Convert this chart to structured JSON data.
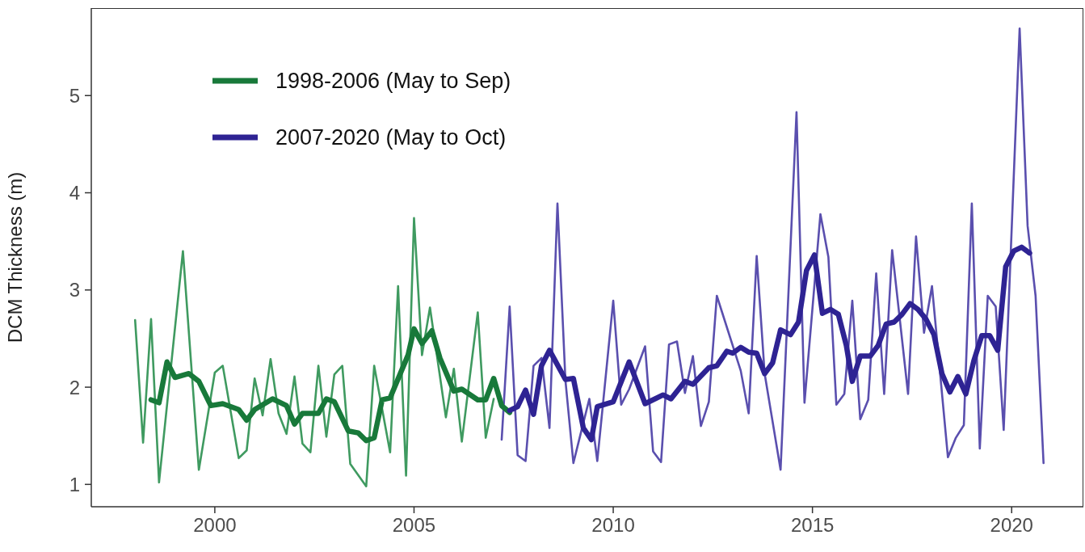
{
  "chart_data": {
    "type": "line",
    "ylabel": "DCM Thickness (m)",
    "xlim": [
      1996.9,
      2021.8
    ],
    "ylim": [
      0.77,
      5.9
    ],
    "xticks": [
      2000,
      2005,
      2010,
      2015,
      2020
    ],
    "yticks": [
      1,
      2,
      3,
      4,
      5
    ],
    "legend": "top left",
    "marker": "none",
    "line_style": "solid",
    "series": [
      {
        "color": "#3f9a60",
        "x": [
          1998.0,
          1998.2,
          1998.4,
          1998.6,
          1999.2,
          1999.6,
          2000.0,
          2000.2,
          2000.6,
          2000.8,
          2001.0,
          2001.2,
          2001.4,
          2001.6,
          2001.8,
          2002.0,
          2002.2,
          2002.4,
          2002.6,
          2002.8,
          2003.0,
          2003.2,
          2003.4,
          2003.8,
          2004.0,
          2004.4,
          2004.6,
          2004.8,
          2005.0,
          2005.2,
          2005.4,
          2005.8,
          2006.0,
          2006.2,
          2006.6,
          2006.8,
          2007.0
        ],
        "values": [
          2.69,
          1.43,
          2.7,
          1.02,
          3.4,
          1.15,
          2.15,
          2.22,
          1.27,
          1.35,
          2.09,
          1.71,
          2.29,
          1.73,
          1.52,
          2.11,
          1.42,
          1.33,
          2.22,
          1.49,
          2.13,
          2.22,
          1.21,
          0.98,
          2.22,
          1.33,
          3.04,
          1.09,
          3.74,
          2.33,
          2.82,
          1.69,
          2.19,
          1.44,
          2.77,
          1.48,
          1.88
        ]
      },
      {
        "color": "#5a4fae",
        "x": [
          2007.2,
          2007.4,
          2007.6,
          2007.8,
          2008.0,
          2008.2,
          2008.4,
          2008.6,
          2008.8,
          2009.0,
          2009.2,
          2009.4,
          2009.6,
          2010.0,
          2010.2,
          2010.4,
          2010.8,
          2011.0,
          2011.2,
          2011.4,
          2011.6,
          2011.8,
          2012.0,
          2012.2,
          2012.4,
          2012.6,
          2013.2,
          2013.4,
          2013.6,
          2013.8,
          2014.2,
          2014.6,
          2014.8,
          2015.2,
          2015.4,
          2015.6,
          2015.8,
          2016.0,
          2016.2,
          2016.4,
          2016.6,
          2016.8,
          2017.0,
          2017.4,
          2017.6,
          2017.8,
          2018.0,
          2018.4,
          2018.6,
          2018.8,
          2019.0,
          2019.2,
          2019.4,
          2019.6,
          2019.8,
          2020.2,
          2020.4,
          2020.6,
          2020.8
        ],
        "values": [
          1.46,
          2.83,
          1.3,
          1.24,
          2.22,
          2.3,
          1.58,
          3.89,
          2.07,
          1.22,
          1.55,
          1.88,
          1.24,
          2.89,
          1.82,
          1.98,
          2.42,
          1.34,
          1.23,
          2.44,
          2.47,
          1.94,
          2.32,
          1.6,
          1.85,
          2.94,
          2.17,
          1.73,
          3.35,
          2.14,
          1.15,
          4.83,
          1.84,
          3.78,
          3.34,
          1.82,
          1.93,
          2.89,
          1.67,
          1.87,
          3.17,
          1.93,
          3.41,
          1.93,
          3.55,
          2.56,
          3.04,
          1.28,
          1.48,
          1.61,
          3.89,
          1.37,
          2.94,
          2.83,
          1.56,
          5.69,
          3.66,
          2.94,
          1.22
        ]
      },
      {
        "name": "1998-2006 (May to Sep)",
        "color": "#18793a",
        "x": [
          1998.4,
          1998.6,
          1998.8,
          1999.0,
          1999.35,
          1999.6,
          1999.9,
          2000.2,
          2000.6,
          2000.8,
          2001.0,
          2001.45,
          2001.8,
          2002.0,
          2002.2,
          2002.6,
          2002.8,
          2003.0,
          2003.35,
          2003.6,
          2003.8,
          2004.0,
          2004.2,
          2004.4,
          2004.85,
          2005.0,
          2005.2,
          2005.45,
          2005.65,
          2006.0,
          2006.2,
          2006.6,
          2006.8,
          2007.0,
          2007.2,
          2007.4
        ],
        "values": [
          1.87,
          1.84,
          2.26,
          2.1,
          2.14,
          2.06,
          1.81,
          1.83,
          1.77,
          1.66,
          1.77,
          1.88,
          1.81,
          1.62,
          1.73,
          1.73,
          1.88,
          1.85,
          1.55,
          1.53,
          1.45,
          1.48,
          1.87,
          1.89,
          2.33,
          2.6,
          2.45,
          2.58,
          2.3,
          1.96,
          1.98,
          1.87,
          1.87,
          2.09,
          1.81,
          1.74
        ]
      },
      {
        "name": "2007-2020 (May to Oct)",
        "color": "#2e2393",
        "x": [
          2007.4,
          2007.6,
          2007.8,
          2008.0,
          2008.2,
          2008.4,
          2008.8,
          2009.0,
          2009.25,
          2009.45,
          2009.6,
          2010.0,
          2010.4,
          2010.8,
          2011.25,
          2011.45,
          2011.8,
          2012.0,
          2012.4,
          2012.6,
          2012.85,
          2013.0,
          2013.2,
          2013.4,
          2013.6,
          2013.8,
          2014.0,
          2014.2,
          2014.45,
          2014.65,
          2014.85,
          2015.05,
          2015.25,
          2015.45,
          2015.65,
          2015.85,
          2016.0,
          2016.2,
          2016.45,
          2016.65,
          2016.85,
          2017.05,
          2017.25,
          2017.45,
          2017.65,
          2017.85,
          2018.05,
          2018.25,
          2018.45,
          2018.65,
          2018.85,
          2019.05,
          2019.25,
          2019.45,
          2019.65,
          2019.85,
          2020.05,
          2020.25,
          2020.45
        ],
        "values": [
          1.76,
          1.8,
          1.97,
          1.72,
          2.22,
          2.38,
          2.08,
          2.09,
          1.58,
          1.46,
          1.8,
          1.85,
          2.26,
          1.83,
          1.92,
          1.88,
          2.06,
          2.03,
          2.2,
          2.22,
          2.37,
          2.35,
          2.41,
          2.36,
          2.35,
          2.14,
          2.25,
          2.59,
          2.54,
          2.67,
          3.2,
          3.36,
          2.76,
          2.8,
          2.75,
          2.43,
          2.06,
          2.32,
          2.32,
          2.43,
          2.65,
          2.67,
          2.75,
          2.86,
          2.8,
          2.7,
          2.54,
          2.14,
          1.95,
          2.11,
          1.93,
          2.27,
          2.53,
          2.53,
          2.38,
          3.24,
          3.4,
          3.44,
          3.38
        ]
      }
    ]
  }
}
